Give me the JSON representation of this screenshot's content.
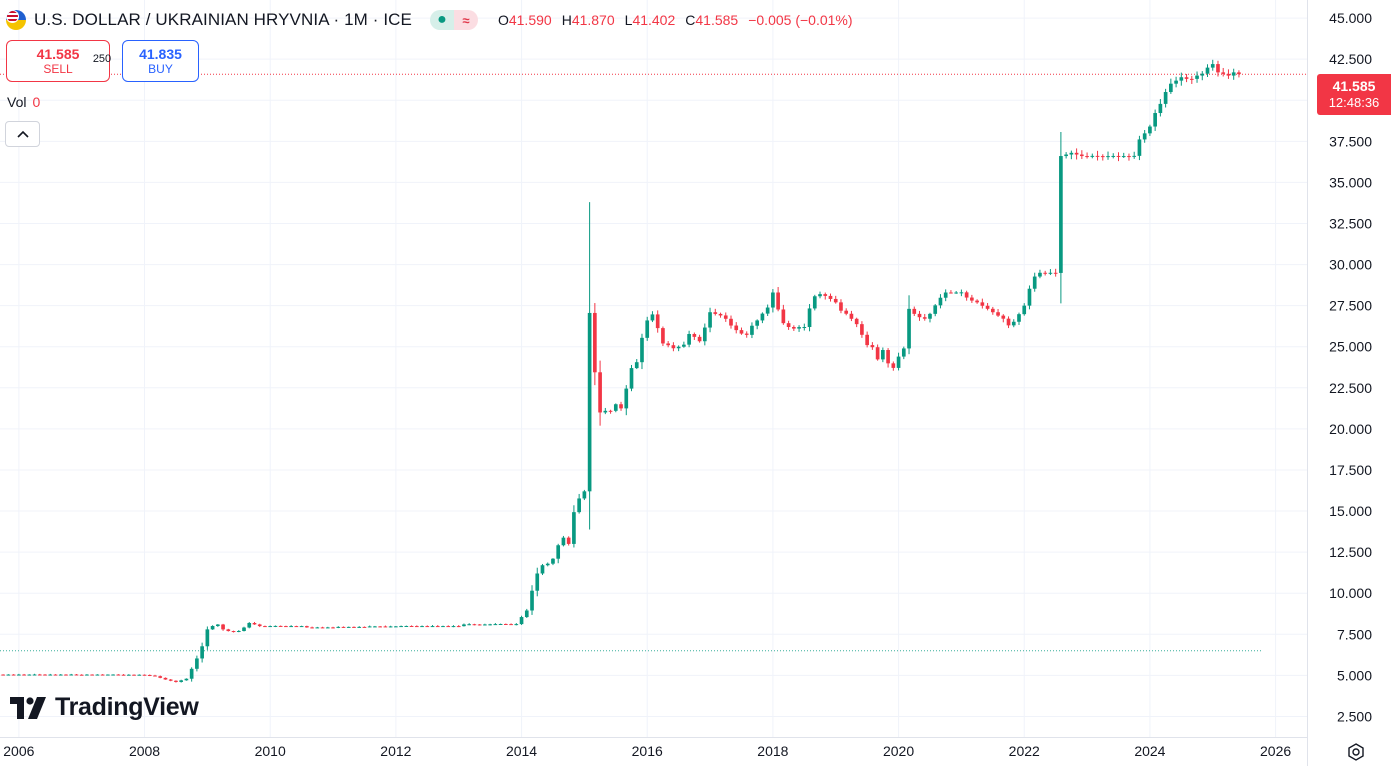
{
  "header": {
    "title": "U.S. DOLLAR / UKRAINIAN HRYVNIA · 1M · ICE",
    "flag_icon": "usd-uah-flag-icon",
    "ohlc": [
      {
        "key": "O",
        "value": "41.590"
      },
      {
        "key": "H",
        "value": "41.870"
      },
      {
        "key": "L",
        "value": "41.402"
      },
      {
        "key": "C",
        "value": "41.585"
      }
    ],
    "change": "−0.005 (−0.01%)"
  },
  "trade": {
    "sell_price": "41.585",
    "sell_label": "SELL",
    "spread": "250",
    "buy_price": "41.835",
    "buy_label": "BUY"
  },
  "volume": {
    "label": "Vol",
    "value": "0"
  },
  "logo": {
    "text": "TradingView"
  },
  "price_label": {
    "price": "41.585",
    "countdown": "12:48:36"
  },
  "colors": {
    "up": "#089981",
    "down": "#f23645",
    "grid": "#f0f3fa",
    "text": "#131722"
  },
  "chart_data": {
    "type": "candlestick",
    "title": "U.S. DOLLAR / UKRAINIAN HRYVNIA · 1M · ICE",
    "interval": "1M",
    "ylim": [
      1.25,
      46.1
    ],
    "xlim": [
      2005.7,
      2026.5
    ],
    "y_ticks": [
      "2.500",
      "5.000",
      "7.500",
      "10.000",
      "12.500",
      "15.000",
      "17.500",
      "20.000",
      "22.500",
      "25.000",
      "27.500",
      "30.000",
      "32.500",
      "35.000",
      "37.500",
      "40.000",
      "42.500",
      "45.000"
    ],
    "y_tick_values": [
      2.5,
      5,
      7.5,
      10,
      12.5,
      15,
      17.5,
      20,
      22.5,
      25,
      27.5,
      30,
      32.5,
      35,
      37.5,
      40,
      42.5,
      45
    ],
    "x_ticks": [
      "2006",
      "2008",
      "2010",
      "2012",
      "2014",
      "2016",
      "2018",
      "2020",
      "2022",
      "2024",
      "2026"
    ],
    "x_tick_values": [
      2006,
      2008,
      2010,
      2012,
      2014,
      2016,
      2018,
      2020,
      2022,
      2024,
      2026
    ],
    "last_price": 41.585,
    "reference_line": 6.5,
    "grid": true,
    "closes": [
      [
        2005.7,
        5.05
      ],
      [
        2006.0,
        5.05
      ],
      [
        2006.5,
        5.04
      ],
      [
        2007.0,
        5.05
      ],
      [
        2007.5,
        5.04
      ],
      [
        2008.0,
        5.03
      ],
      [
        2008.17,
        4.95
      ],
      [
        2008.33,
        4.75
      ],
      [
        2008.5,
        4.6
      ],
      [
        2008.67,
        4.8
      ],
      [
        2008.75,
        5.4
      ],
      [
        2008.83,
        6.0
      ],
      [
        2008.92,
        6.8
      ],
      [
        2009.0,
        7.8
      ],
      [
        2009.08,
        8.0
      ],
      [
        2009.17,
        8.1
      ],
      [
        2009.25,
        7.8
      ],
      [
        2009.33,
        7.7
      ],
      [
        2009.42,
        7.65
      ],
      [
        2009.5,
        7.7
      ],
      [
        2009.58,
        7.9
      ],
      [
        2009.67,
        8.2
      ],
      [
        2009.75,
        8.1
      ],
      [
        2009.83,
        8.0
      ],
      [
        2009.92,
        8.0
      ],
      [
        2010.0,
        8.0
      ],
      [
        2010.5,
        7.92
      ],
      [
        2011.0,
        7.95
      ],
      [
        2011.5,
        7.98
      ],
      [
        2012.0,
        8.0
      ],
      [
        2012.5,
        8.0
      ],
      [
        2013.0,
        8.1
      ],
      [
        2013.5,
        8.12
      ],
      [
        2013.92,
        8.2
      ],
      [
        2014.08,
        8.9
      ],
      [
        2014.17,
        10.2
      ],
      [
        2014.25,
        11.2
      ],
      [
        2014.33,
        11.7
      ],
      [
        2014.42,
        11.8
      ],
      [
        2014.5,
        12.1
      ],
      [
        2014.58,
        12.9
      ],
      [
        2014.67,
        13.4
      ],
      [
        2014.75,
        13.0
      ],
      [
        2014.83,
        14.9
      ],
      [
        2014.92,
        15.8
      ],
      [
        2015.0,
        16.2
      ],
      [
        2015.08,
        27.2
      ],
      [
        2015.17,
        23.3
      ],
      [
        2015.25,
        21.0
      ],
      [
        2015.33,
        21.1
      ],
      [
        2015.42,
        21.1
      ],
      [
        2015.5,
        21.5
      ],
      [
        2015.58,
        21.2
      ],
      [
        2015.67,
        22.5
      ],
      [
        2015.75,
        23.7
      ],
      [
        2015.83,
        24.0
      ],
      [
        2015.92,
        25.6
      ],
      [
        2016.0,
        26.6
      ],
      [
        2016.08,
        27.0
      ],
      [
        2016.17,
        26.1
      ],
      [
        2016.25,
        25.2
      ],
      [
        2016.33,
        25.1
      ],
      [
        2016.42,
        24.9
      ],
      [
        2016.5,
        25.0
      ],
      [
        2016.58,
        25.1
      ],
      [
        2016.67,
        25.8
      ],
      [
        2016.75,
        25.6
      ],
      [
        2016.83,
        25.3
      ],
      [
        2016.92,
        26.2
      ],
      [
        2017.0,
        27.1
      ],
      [
        2017.08,
        27.0
      ],
      [
        2017.17,
        26.9
      ],
      [
        2017.25,
        26.7
      ],
      [
        2017.33,
        26.3
      ],
      [
        2017.42,
        26.0
      ],
      [
        2017.5,
        25.8
      ],
      [
        2017.58,
        25.7
      ],
      [
        2017.67,
        26.3
      ],
      [
        2017.75,
        26.6
      ],
      [
        2017.83,
        27.0
      ],
      [
        2017.92,
        27.4
      ],
      [
        2018.0,
        28.3
      ],
      [
        2018.08,
        27.3
      ],
      [
        2018.17,
        26.4
      ],
      [
        2018.25,
        26.2
      ],
      [
        2018.33,
        26.1
      ],
      [
        2018.42,
        26.2
      ],
      [
        2018.5,
        26.2
      ],
      [
        2018.58,
        27.3
      ],
      [
        2018.67,
        28.1
      ],
      [
        2018.75,
        28.2
      ],
      [
        2018.83,
        28.1
      ],
      [
        2018.92,
        27.9
      ],
      [
        2019.0,
        27.7
      ],
      [
        2019.08,
        27.2
      ],
      [
        2019.17,
        27.0
      ],
      [
        2019.25,
        26.7
      ],
      [
        2019.33,
        26.4
      ],
      [
        2019.42,
        25.7
      ],
      [
        2019.5,
        25.1
      ],
      [
        2019.58,
        25.0
      ],
      [
        2019.67,
        24.2
      ],
      [
        2019.75,
        24.8
      ],
      [
        2019.83,
        24.0
      ],
      [
        2019.92,
        23.7
      ],
      [
        2020.0,
        24.4
      ],
      [
        2020.08,
        24.8
      ],
      [
        2020.17,
        27.4
      ],
      [
        2020.25,
        27.0
      ],
      [
        2020.33,
        26.8
      ],
      [
        2020.42,
        26.7
      ],
      [
        2020.5,
        27.0
      ],
      [
        2020.58,
        27.5
      ],
      [
        2020.67,
        28.0
      ],
      [
        2020.75,
        28.3
      ],
      [
        2020.83,
        28.3
      ],
      [
        2020.92,
        28.3
      ],
      [
        2021.0,
        28.3
      ],
      [
        2021.08,
        28.0
      ],
      [
        2021.17,
        27.8
      ],
      [
        2021.25,
        27.7
      ],
      [
        2021.33,
        27.5
      ],
      [
        2021.42,
        27.3
      ],
      [
        2021.5,
        27.1
      ],
      [
        2021.58,
        26.9
      ],
      [
        2021.67,
        26.7
      ],
      [
        2021.75,
        26.3
      ],
      [
        2021.83,
        26.5
      ],
      [
        2021.92,
        27.0
      ],
      [
        2022.0,
        27.5
      ],
      [
        2022.08,
        28.5
      ],
      [
        2022.17,
        29.3
      ],
      [
        2022.25,
        29.5
      ],
      [
        2022.33,
        29.5
      ],
      [
        2022.42,
        29.5
      ],
      [
        2022.5,
        29.5
      ],
      [
        2022.58,
        36.6
      ],
      [
        2022.67,
        36.7
      ],
      [
        2022.75,
        36.8
      ],
      [
        2022.83,
        36.7
      ],
      [
        2022.92,
        36.6
      ],
      [
        2023.0,
        36.6
      ],
      [
        2023.25,
        36.6
      ],
      [
        2023.5,
        36.6
      ],
      [
        2023.75,
        36.6
      ],
      [
        2023.83,
        37.6
      ],
      [
        2023.92,
        38.0
      ],
      [
        2024.0,
        38.4
      ],
      [
        2024.08,
        39.2
      ],
      [
        2024.17,
        39.8
      ],
      [
        2024.25,
        40.5
      ],
      [
        2024.33,
        41.0
      ],
      [
        2024.42,
        41.2
      ],
      [
        2024.5,
        41.4
      ],
      [
        2024.58,
        41.3
      ],
      [
        2024.67,
        41.3
      ],
      [
        2024.75,
        41.5
      ],
      [
        2024.83,
        41.6
      ],
      [
        2024.92,
        42.0
      ],
      [
        2025.0,
        42.2
      ],
      [
        2025.08,
        41.7
      ],
      [
        2025.17,
        41.6
      ],
      [
        2025.25,
        41.5
      ],
      [
        2025.33,
        41.7
      ],
      [
        2025.42,
        41.585
      ]
    ]
  }
}
